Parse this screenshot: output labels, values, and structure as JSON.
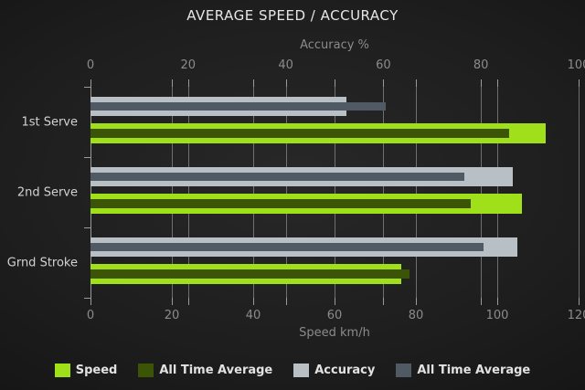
{
  "title": "AVERAGE SPEED / ACCURACY",
  "chart_data": {
    "type": "bar",
    "orientation": "horizontal",
    "grid": true,
    "legend_position": "bottom",
    "categories": [
      "1st Serve",
      "2nd Serve",
      "Grnd Stroke"
    ],
    "axes": {
      "top": {
        "label": "Accuracy %",
        "min": 0,
        "max": 100,
        "ticks": [
          0,
          20,
          40,
          60,
          80,
          100
        ]
      },
      "bottom": {
        "label": "Speed km/h",
        "min": 0,
        "max": 120,
        "ticks": [
          0,
          20,
          40,
          60,
          80,
          100,
          120
        ]
      }
    },
    "series": [
      {
        "name": "Speed",
        "axis": "bottom",
        "role": "current",
        "color": "#9fe01b",
        "values": [
          112,
          106,
          76.5
        ]
      },
      {
        "name": "All Time Average",
        "axis": "bottom",
        "role": "average",
        "color": "#3c5406",
        "values": [
          103,
          93.5,
          78.5
        ]
      },
      {
        "name": "Accuracy",
        "axis": "top",
        "role": "current",
        "color": "#b9c0c5",
        "values": [
          52.5,
          86.5,
          87.5
        ]
      },
      {
        "name": "All Time Average",
        "axis": "top",
        "role": "average",
        "color": "#4f5a64",
        "values": [
          60.5,
          76.5,
          80.5
        ]
      }
    ]
  }
}
